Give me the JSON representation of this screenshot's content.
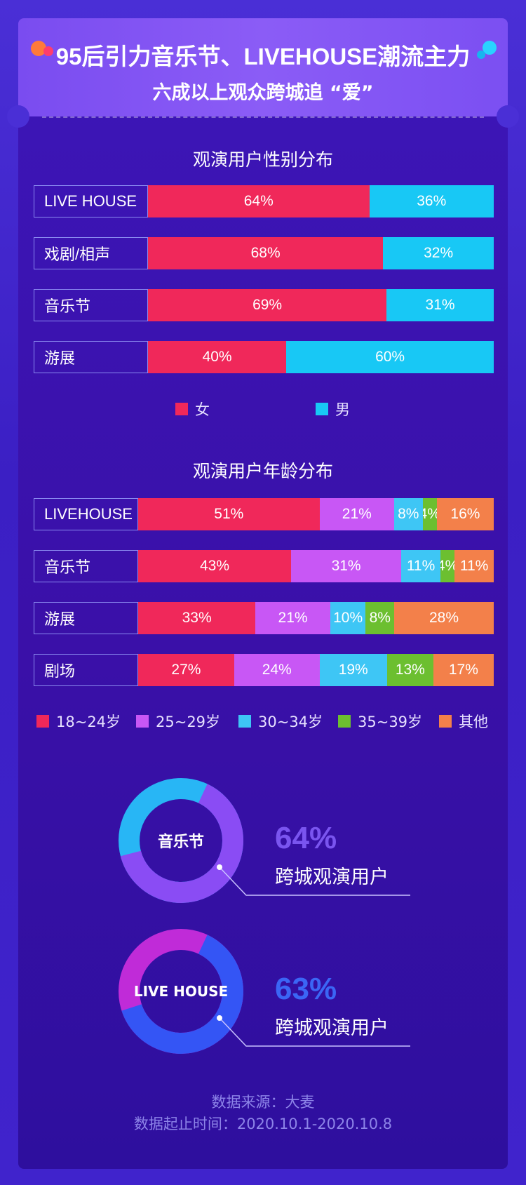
{
  "header": {
    "title": "95后引力音乐节、LIVEHOUSE潮流主力",
    "subtitle": "六成以上观众跨城追 “爱”"
  },
  "colors": {
    "female": "#f0285a",
    "male": "#18c8f5",
    "age_18_24": "#f0285a",
    "age_25_29": "#c857f5",
    "age_30_34": "#3ec6f5",
    "age_35_39": "#6cbf30",
    "age_other": "#f3804a",
    "donut1_main": "#8a4cf4",
    "donut1_rest": "#28b6f5",
    "donut2_main": "#3455f5",
    "donut2_rest": "#c02bd8",
    "pct1": "#7a55ef",
    "pct2": "#3b66f5"
  },
  "chart_data": [
    {
      "type": "bar",
      "orientation": "horizontal-stacked-100",
      "title": "观演用户性别分布",
      "categories": [
        "LIVE HOUSE",
        "戏剧/相声",
        "音乐节",
        "游展"
      ],
      "series": [
        {
          "name": "女",
          "values": [
            64,
            68,
            69,
            40
          ]
        },
        {
          "name": "男",
          "values": [
            36,
            32,
            31,
            60
          ]
        }
      ],
      "legend": "bottom"
    },
    {
      "type": "bar",
      "orientation": "horizontal-stacked-100",
      "title": "观演用户年龄分布",
      "categories": [
        "LIVEHOUSE",
        "音乐节",
        "游展",
        "剧场"
      ],
      "series": [
        {
          "name": "18~24岁",
          "values": [
            51,
            43,
            33,
            27
          ]
        },
        {
          "name": "25~29岁",
          "values": [
            21,
            31,
            21,
            24
          ]
        },
        {
          "name": "30~34岁",
          "values": [
            8,
            11,
            10,
            19
          ]
        },
        {
          "name": "35~39岁",
          "values": [
            4,
            4,
            8,
            13
          ]
        },
        {
          "name": "其他",
          "values": [
            16,
            11,
            28,
            17
          ]
        }
      ],
      "legend": "bottom"
    },
    {
      "type": "pie",
      "variant": "donut",
      "center_label": "音乐节",
      "value": 64,
      "value_label": "64%",
      "caption": "跨城观演用户"
    },
    {
      "type": "pie",
      "variant": "donut",
      "center_label": "LIVE HOUSE",
      "value": 63,
      "value_label": "63%",
      "caption": "跨城观演用户"
    }
  ],
  "footer": {
    "source": "数据来源：大麦",
    "period": "数据起止时间：2020.10.1-2020.10.8"
  }
}
